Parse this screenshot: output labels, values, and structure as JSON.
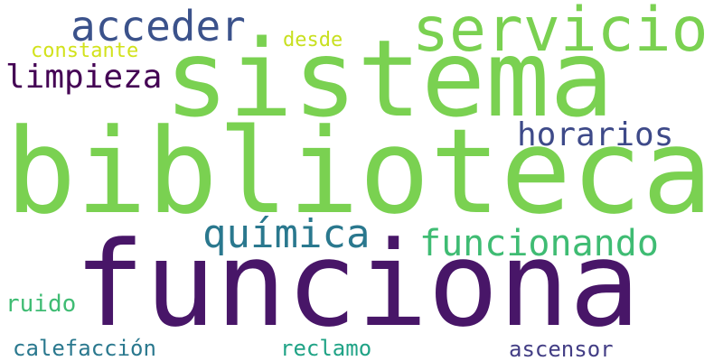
{
  "words": [
    {
      "id": "sistema",
      "text": "sistema",
      "color": "#7ad151"
    },
    {
      "id": "biblioteca",
      "text": "biblioteca",
      "color": "#7ad151"
    },
    {
      "id": "funciona",
      "text": "funciona",
      "color": "#481668"
    },
    {
      "id": "servicio",
      "text": "servicio",
      "color": "#7ad151"
    },
    {
      "id": "acceder",
      "text": "acceder",
      "color": "#3b528b"
    },
    {
      "id": "limpieza",
      "text": "limpieza",
      "color": "#440154"
    },
    {
      "id": "horarios",
      "text": "horarios",
      "color": "#3e4a89"
    },
    {
      "id": "quimica",
      "text": "química",
      "color": "#2a788e"
    },
    {
      "id": "funcionando",
      "text": "funcionando",
      "color": "#3fbc73"
    },
    {
      "id": "constante",
      "text": "constante",
      "color": "#d2e21b"
    },
    {
      "id": "desde",
      "text": "desde",
      "color": "#c8e020"
    },
    {
      "id": "ruido",
      "text": "ruido",
      "color": "#3fbc73"
    },
    {
      "id": "calefaccion",
      "text": "calefacción",
      "color": "#2a788e"
    },
    {
      "id": "reclamo",
      "text": "reclamo",
      "color": "#20a386"
    },
    {
      "id": "ascensor",
      "text": "ascensor",
      "color": "#433e85"
    }
  ]
}
